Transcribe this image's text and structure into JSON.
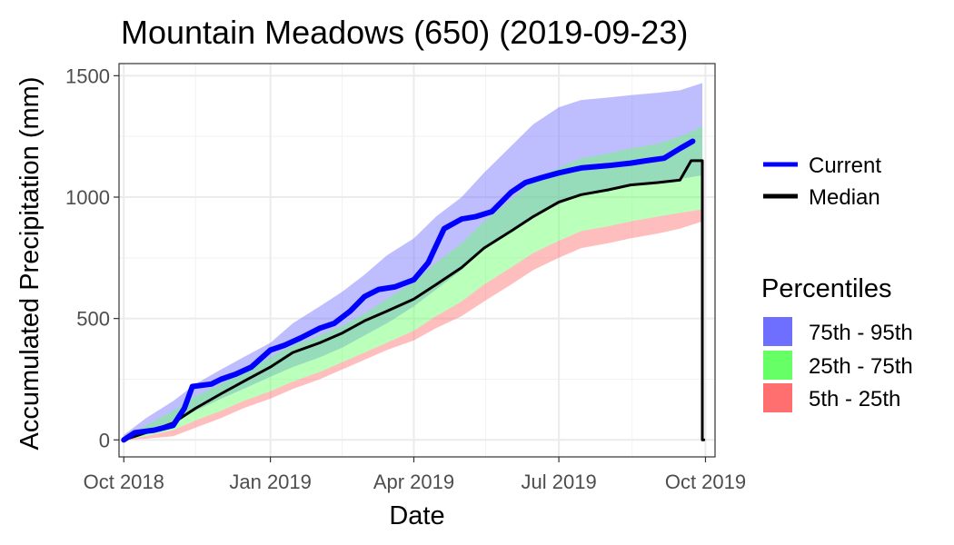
{
  "chart_data": {
    "type": "area",
    "title": "Mountain Meadows (650) (2019-09-23)",
    "xlabel": "Date",
    "ylabel": "Accumulated Precipitation (mm)",
    "x_range": [
      "2018-09-28",
      "2019-10-07"
    ],
    "ylim": [
      -70,
      1550
    ],
    "x_ticks": [
      {
        "date": "2018-10-01",
        "label": "Oct 2018"
      },
      {
        "date": "2019-01-01",
        "label": "Jan 2019"
      },
      {
        "date": "2019-04-01",
        "label": "Apr 2019"
      },
      {
        "date": "2019-07-01",
        "label": "Jul 2019"
      },
      {
        "date": "2019-10-01",
        "label": "Oct 2019"
      }
    ],
    "x_minor_ticks": [
      "2018-11-15",
      "2019-02-15",
      "2019-05-16",
      "2019-08-16"
    ],
    "y_ticks": [
      0,
      500,
      1000,
      1500
    ],
    "y_minor_ticks": [
      250,
      750,
      1250
    ],
    "grid": true,
    "legend": {
      "position": "right",
      "lines": [
        {
          "label": "Current",
          "color": "#0000ff"
        },
        {
          "label": "Median",
          "color": "#000000"
        }
      ],
      "fill_title": "Percentiles",
      "fills": [
        {
          "label": "75th - 95th",
          "color": "#6f6fff"
        },
        {
          "label": "25th - 75th",
          "color": "#66ff66"
        },
        {
          "label": "5th - 25th",
          "color": "#ff6f6f"
        }
      ]
    },
    "bands": [
      {
        "name": "75th - 95th",
        "color": "#6f6fff",
        "opacity": 0.45,
        "x": [
          "2018-10-01",
          "2018-10-15",
          "2018-11-01",
          "2018-11-15",
          "2018-12-01",
          "2018-12-15",
          "2019-01-01",
          "2019-01-15",
          "2019-02-01",
          "2019-02-15",
          "2019-03-01",
          "2019-03-15",
          "2019-04-01",
          "2019-04-15",
          "2019-05-01",
          "2019-05-15",
          "2019-06-01",
          "2019-06-15",
          "2019-07-01",
          "2019-07-15",
          "2019-08-01",
          "2019-08-15",
          "2019-09-01",
          "2019-09-15",
          "2019-09-29"
        ],
        "lower": [
          0,
          30,
          70,
          120,
          170,
          210,
          260,
          300,
          340,
          380,
          430,
          480,
          550,
          620,
          700,
          790,
          860,
          920,
          970,
          1010,
          1030,
          1050,
          1060,
          1075,
          1090
        ],
        "upper": [
          20,
          90,
          160,
          230,
          290,
          340,
          400,
          480,
          550,
          610,
          680,
          760,
          830,
          920,
          1000,
          1100,
          1210,
          1300,
          1370,
          1400,
          1410,
          1420,
          1430,
          1440,
          1470
        ]
      },
      {
        "name": "25th - 75th",
        "color": "#66ff66",
        "opacity": 0.45,
        "x": [
          "2018-10-01",
          "2018-10-15",
          "2018-11-01",
          "2018-11-15",
          "2018-12-01",
          "2018-12-15",
          "2019-01-01",
          "2019-01-15",
          "2019-02-01",
          "2019-02-15",
          "2019-03-01",
          "2019-03-15",
          "2019-04-01",
          "2019-04-15",
          "2019-05-01",
          "2019-05-15",
          "2019-06-01",
          "2019-06-15",
          "2019-07-01",
          "2019-07-15",
          "2019-08-01",
          "2019-08-15",
          "2019-09-01",
          "2019-09-15",
          "2019-09-29"
        ],
        "lower": [
          0,
          15,
          40,
          80,
          120,
          160,
          200,
          240,
          280,
          320,
          360,
          400,
          450,
          510,
          570,
          640,
          710,
          770,
          820,
          860,
          880,
          900,
          920,
          935,
          950
        ],
        "upper": [
          10,
          60,
          120,
          180,
          230,
          280,
          340,
          390,
          430,
          470,
          520,
          580,
          650,
          730,
          810,
          900,
          990,
          1070,
          1120,
          1160,
          1180,
          1200,
          1220,
          1250,
          1290
        ]
      },
      {
        "name": "5th - 25th",
        "color": "#ff6f6f",
        "opacity": 0.45,
        "x": [
          "2018-10-01",
          "2018-10-15",
          "2018-11-01",
          "2018-11-15",
          "2018-12-01",
          "2018-12-15",
          "2019-01-01",
          "2019-01-15",
          "2019-02-01",
          "2019-02-15",
          "2019-03-01",
          "2019-03-15",
          "2019-04-01",
          "2019-04-15",
          "2019-05-01",
          "2019-05-15",
          "2019-06-01",
          "2019-06-15",
          "2019-07-01",
          "2019-07-15",
          "2019-08-01",
          "2019-08-15",
          "2019-09-01",
          "2019-09-15",
          "2019-09-29"
        ],
        "lower": [
          0,
          5,
          15,
          50,
          90,
          130,
          170,
          210,
          250,
          290,
          330,
          370,
          410,
          460,
          510,
          570,
          640,
          700,
          750,
          790,
          810,
          830,
          850,
          870,
          900
        ],
        "upper": [
          0,
          15,
          40,
          80,
          120,
          160,
          200,
          240,
          280,
          320,
          360,
          400,
          450,
          510,
          570,
          640,
          710,
          770,
          820,
          860,
          880,
          900,
          920,
          935,
          950
        ]
      }
    ],
    "series": [
      {
        "name": "Current",
        "color": "#0000ff",
        "x": [
          "2018-10-01",
          "2018-10-08",
          "2018-10-20",
          "2018-11-01",
          "2018-11-08",
          "2018-11-13",
          "2018-11-25",
          "2018-12-01",
          "2018-12-10",
          "2018-12-20",
          "2019-01-01",
          "2019-01-10",
          "2019-01-20",
          "2019-02-01",
          "2019-02-10",
          "2019-02-20",
          "2019-03-01",
          "2019-03-10",
          "2019-03-20",
          "2019-04-01",
          "2019-04-10",
          "2019-04-15",
          "2019-04-20",
          "2019-05-01",
          "2019-05-10",
          "2019-05-20",
          "2019-06-01",
          "2019-06-10",
          "2019-06-20",
          "2019-07-01",
          "2019-07-15",
          "2019-08-01",
          "2019-08-15",
          "2019-08-25",
          "2019-09-05",
          "2019-09-15",
          "2019-09-23"
        ],
        "y": [
          0,
          30,
          40,
          60,
          130,
          220,
          230,
          250,
          270,
          300,
          370,
          390,
          420,
          460,
          480,
          530,
          590,
          620,
          630,
          660,
          730,
          800,
          870,
          910,
          920,
          940,
          1020,
          1060,
          1080,
          1100,
          1120,
          1130,
          1140,
          1150,
          1160,
          1200,
          1230
        ]
      },
      {
        "name": "Median",
        "color": "#000000",
        "x": [
          "2018-10-01",
          "2018-10-15",
          "2018-11-01",
          "2018-11-15",
          "2018-12-01",
          "2018-12-15",
          "2019-01-01",
          "2019-01-15",
          "2019-02-01",
          "2019-02-15",
          "2019-03-01",
          "2019-03-15",
          "2019-04-01",
          "2019-04-15",
          "2019-05-01",
          "2019-05-15",
          "2019-06-01",
          "2019-06-15",
          "2019-07-01",
          "2019-07-15",
          "2019-08-01",
          "2019-08-15",
          "2019-09-01",
          "2019-09-15",
          "2019-09-22",
          "2019-09-29",
          "2019-09-29",
          "2019-09-30"
        ],
        "y": [
          0,
          30,
          70,
          130,
          190,
          240,
          300,
          360,
          400,
          440,
          490,
          530,
          580,
          640,
          710,
          790,
          860,
          920,
          980,
          1010,
          1030,
          1050,
          1060,
          1070,
          1150,
          1150,
          0,
          0
        ]
      }
    ]
  }
}
